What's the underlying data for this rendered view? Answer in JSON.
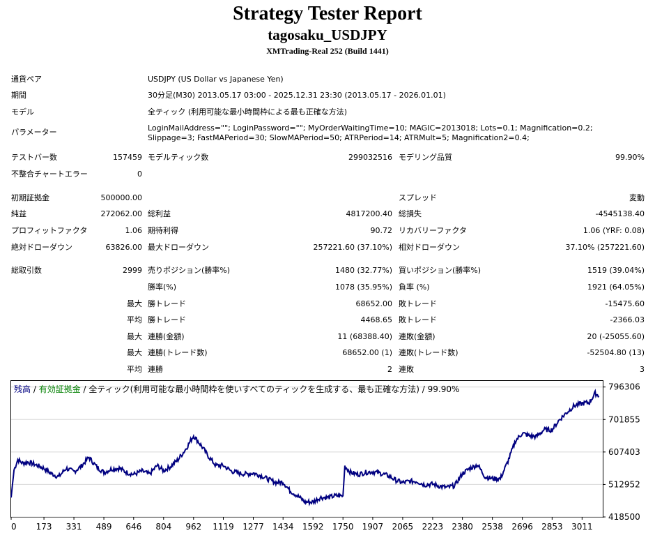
{
  "header": {
    "title": "Strategy Tester Report",
    "ea_name": "tagosaku_USDJPY",
    "server": "XMTrading-Real 252 (Build 1441)"
  },
  "info": {
    "symbol_label": "通貨ペア",
    "symbol_value": "USDJPY (US Dollar vs Japanese Yen)",
    "period_label": "期間",
    "period_value": "30分足(M30) 2013.05.17 03:00 - 2025.12.31 23:30 (2013.05.17 - 2026.01.01)",
    "model_label": "モデル",
    "model_value": "全ティック (利用可能な最小時間枠による最も正確な方法)",
    "params_label": "パラメーター",
    "params_value": "LoginMailAddress=\"\"; LoginPassword=\"\"; MyOrderWaitingTime=10; MAGIC=2013018; Lots=0.1; Magnification=0.2; Slippage=3; FastMAPeriod=30; SlowMAPeriod=50; ATRPeriod=14; ATRMult=5; Magnification2=0.4;"
  },
  "stats": {
    "bars_label": "テストバー数",
    "bars_value": "157459",
    "ticks_label": "モデルティック数",
    "ticks_value": "299032516",
    "quality_label": "モデリング品質",
    "quality_value": "99.90%",
    "mismatch_label": "不整合チャートエラー",
    "mismatch_value": "0",
    "deposit_label": "初期証拠金",
    "deposit_value": "500000.00",
    "spread_label": "スプレッド",
    "spread_value": "変動",
    "net_label": "純益",
    "net_value": "272062.00",
    "gross_profit_label": "総利益",
    "gross_profit_value": "4817200.40",
    "gross_loss_label": "総損失",
    "gross_loss_value": "-4545138.40",
    "pf_label": "プロフィットファクタ",
    "pf_value": "1.06",
    "ep_label": "期待利得",
    "ep_value": "90.72",
    "rf_label": "リカバリーファクタ",
    "rf_value": "1.06 (YRF: 0.08)",
    "abs_dd_label": "絶対ドローダウン",
    "abs_dd_value": "63826.00",
    "max_dd_label": "最大ドローダウン",
    "max_dd_value": "257221.60 (37.10%)",
    "rel_dd_label": "相対ドローダウン",
    "rel_dd_value": "37.10% (257221.60)",
    "trades_label": "総取引数",
    "trades_value": "2999",
    "short_label": "売りポジション(勝率%)",
    "short_value": "1480 (32.77%)",
    "long_label": "買いポジション(勝率%)",
    "long_value": "1519 (39.04%)",
    "win_rate_label": "勝率(%)",
    "win_rate_value": "1078 (35.95%)",
    "loss_rate_label": "負率 (%)",
    "loss_rate_value": "1921 (64.05%)",
    "max_label": "最大",
    "avg_label": "平均",
    "largest_win_label": "勝トレード",
    "largest_win_value": "68652.00",
    "largest_loss_label": "敗トレード",
    "largest_loss_value": "-15475.60",
    "avg_win_label": "勝トレード",
    "avg_win_value": "4468.65",
    "avg_loss_label": "敗トレード",
    "avg_loss_value": "-2366.03",
    "consec_win_amt_label": "連勝(金額)",
    "consec_win_amt_value": "11 (68388.40)",
    "consec_loss_amt_label": "連敗(金額)",
    "consec_loss_amt_value": "20 (-25055.60)",
    "consec_win_trd_label": "連勝(トレード数)",
    "consec_win_trd_value": "68652.00 (1)",
    "consec_loss_trd_label": "連敗(トレード数)",
    "consec_loss_trd_value": "-52504.80 (13)",
    "avg_consec_win_label": "連勝",
    "avg_consec_win_value": "2",
    "avg_consec_loss_label": "連敗",
    "avg_consec_loss_value": "3"
  },
  "chart_legend": {
    "balance": "残高",
    "sep1": " / ",
    "equity": "有効証拠金",
    "sep2": " / ",
    "model": "全ティック(利用可能な最小時間枠を使いすべてのティックを生成する、最も正確な方法) / 99.90%",
    "balance_color": "#000080",
    "equity_color": "#008000"
  },
  "chart_data": {
    "type": "line",
    "xticks": [
      "0",
      "173",
      "331",
      "489",
      "646",
      "804",
      "962",
      "1119",
      "1277",
      "1434",
      "1592",
      "1750",
      "1907",
      "2065",
      "2223",
      "2380",
      "2538",
      "2696",
      "2853",
      "3011"
    ],
    "xtick_values": [
      0,
      173,
      331,
      489,
      646,
      804,
      962,
      1119,
      1277,
      1434,
      1592,
      1750,
      1907,
      2065,
      2223,
      2380,
      2538,
      2696,
      2853,
      3011
    ],
    "yticks": [
      "796306",
      "701855",
      "607403",
      "512952",
      "418500"
    ],
    "ytick_values": [
      796306,
      701855,
      607403,
      512952,
      418500
    ],
    "xlim": [
      0,
      3120
    ],
    "ylim": [
      418500,
      814000
    ],
    "line_color": "#000080",
    "series": [
      {
        "name": "残高",
        "x": [
          0,
          15,
          35,
          60,
          90,
          130,
          173,
          210,
          250,
          290,
          331,
          370,
          410,
          450,
          489,
          530,
          570,
          610,
          646,
          690,
          730,
          770,
          804,
          840,
          880,
          920,
          962,
          1000,
          1040,
          1080,
          1119,
          1160,
          1200,
          1240,
          1277,
          1320,
          1360,
          1400,
          1434,
          1470,
          1510,
          1550,
          1592,
          1630,
          1670,
          1710,
          1750,
          1760,
          1790,
          1830,
          1870,
          1907,
          1950,
          1990,
          2030,
          2065,
          2100,
          2140,
          2180,
          2223,
          2260,
          2300,
          2340,
          2380,
          2420,
          2460,
          2500,
          2538,
          2580,
          2620,
          2660,
          2696,
          2730,
          2770,
          2810,
          2853,
          2890,
          2930,
          2970,
          3011,
          3050,
          3080,
          3100
        ],
        "y": [
          475000,
          555000,
          585000,
          575000,
          578000,
          570000,
          560000,
          545000,
          535000,
          560000,
          550000,
          566000,
          592000,
          565000,
          548000,
          558000,
          560000,
          548000,
          542000,
          552000,
          543000,
          568000,
          553000,
          565000,
          585000,
          615000,
          655000,
          628000,
          595000,
          568000,
          568000,
          552000,
          546000,
          543000,
          546000,
          538000,
          527000,
          518000,
          520000,
          495000,
          480000,
          462000,
          462000,
          475000,
          475000,
          480000,
          480000,
          566000,
          548000,
          542000,
          548000,
          550000,
          545000,
          538000,
          525000,
          518000,
          522000,
          522000,
          512000,
          514000,
          508000,
          504000,
          510000,
          545000,
          560000,
          570000,
          535000,
          530000,
          530000,
          580000,
          640000,
          662000,
          655000,
          652000,
          672000,
          672000,
          700000,
          722000,
          742000,
          748000,
          752000,
          778000,
          770000
        ]
      }
    ]
  }
}
